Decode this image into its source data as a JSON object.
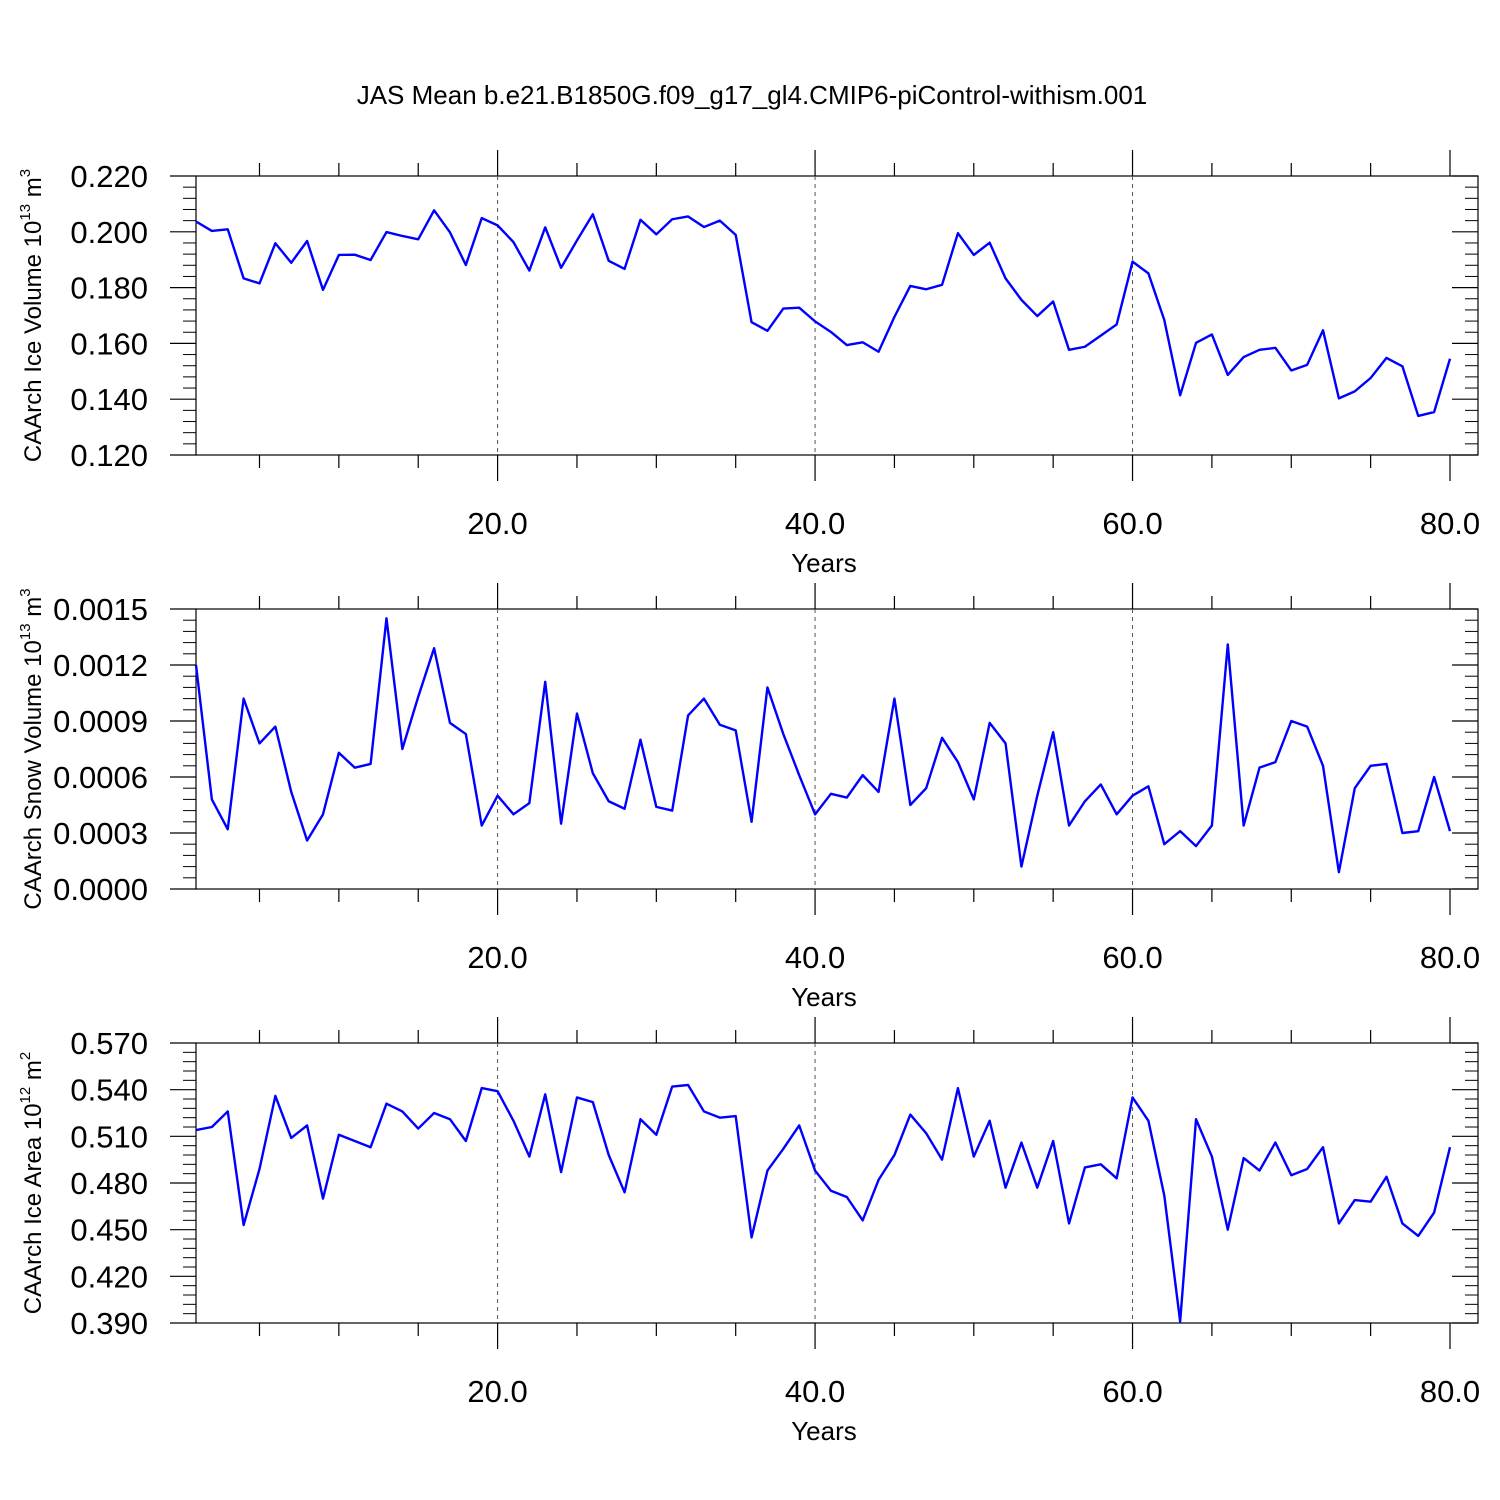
{
  "title": "JAS Mean b.e21.B1850G.f09_g17_gl4.CMIP6-piControl-withism.001",
  "colors": {
    "series": "#0000ff",
    "axis": "#000000",
    "grid": "#555555"
  },
  "chart_data": [
    {
      "type": "line",
      "name": "ice-volume",
      "ylabel": {
        "text": "CAArch Ice Volume 10",
        "exp": "13",
        "unit": " m",
        "unit_exp": "3"
      },
      "xlabel": "Years",
      "xlim": [
        1,
        80
      ],
      "ylim": [
        0.12,
        0.22
      ],
      "xticks": [
        20,
        40,
        60,
        80
      ],
      "xtick_labels": [
        "20.0",
        "40.0",
        "60.0",
        "80.0"
      ],
      "yticks": [
        0.12,
        0.14,
        0.16,
        0.18,
        0.2,
        0.22
      ],
      "ytick_labels": [
        "0.120",
        "0.140",
        "0.160",
        "0.180",
        "0.200",
        "0.220"
      ],
      "grid": "dashed vertical at major x ticks",
      "x_start": 1,
      "values": [
        0.2037,
        0.2003,
        0.2009,
        0.1833,
        0.1815,
        0.1959,
        0.1889,
        0.1967,
        0.1792,
        0.1917,
        0.1918,
        0.1899,
        0.1999,
        0.1985,
        0.1973,
        0.2077,
        0.1998,
        0.1881,
        0.2049,
        0.2023,
        0.1963,
        0.1861,
        0.2016,
        0.1871,
        0.1969,
        0.2063,
        0.1896,
        0.1867,
        0.2043,
        0.1991,
        0.2045,
        0.2055,
        0.2017,
        0.204,
        0.1989,
        0.1676,
        0.1645,
        0.1725,
        0.1728,
        0.1679,
        0.1641,
        0.1594,
        0.1604,
        0.157,
        0.1695,
        0.1806,
        0.1794,
        0.181,
        0.1995,
        0.1917,
        0.1961,
        0.1833,
        0.1756,
        0.1698,
        0.175,
        0.1577,
        0.1588,
        0.1628,
        0.1668,
        0.1893,
        0.1851,
        0.1684,
        0.1414,
        0.1602,
        0.1632,
        0.1487,
        0.1551,
        0.1577,
        0.1584,
        0.1503,
        0.1523,
        0.1647,
        0.1403,
        0.1428,
        0.1476,
        0.1548,
        0.1518,
        0.134,
        0.1354,
        0.1545
      ]
    },
    {
      "type": "line",
      "name": "snow-volume",
      "ylabel": {
        "text": "CAArch Snow Volume 10",
        "exp": "13",
        "unit": " m",
        "unit_exp": "3"
      },
      "xlabel": "Years",
      "xlim": [
        1,
        80
      ],
      "ylim": [
        0.0,
        0.0015
      ],
      "xticks": [
        20,
        40,
        60,
        80
      ],
      "xtick_labels": [
        "20.0",
        "40.0",
        "60.0",
        "80.0"
      ],
      "yticks": [
        0.0,
        0.0003,
        0.0006,
        0.0009,
        0.0012,
        0.0015
      ],
      "ytick_labels": [
        "0.0000",
        "0.0003",
        "0.0006",
        "0.0009",
        "0.0012",
        "0.0015"
      ],
      "grid": "dashed vertical at major x ticks",
      "x_start": 1,
      "values": [
        0.0012,
        0.00048,
        0.00032,
        0.00102,
        0.00078,
        0.00087,
        0.00052,
        0.00026,
        0.0004,
        0.00073,
        0.00065,
        0.00067,
        0.00145,
        0.00075,
        0.00103,
        0.00129,
        0.00089,
        0.00083,
        0.00034,
        0.0005,
        0.0004,
        0.00046,
        0.00111,
        0.00035,
        0.00094,
        0.00062,
        0.00047,
        0.00043,
        0.0008,
        0.00044,
        0.00042,
        0.00093,
        0.00102,
        0.00088,
        0.00085,
        0.00036,
        0.00108,
        0.00083,
        0.00061,
        0.0004,
        0.00051,
        0.00049,
        0.00061,
        0.00052,
        0.00102,
        0.00045,
        0.00054,
        0.00081,
        0.00068,
        0.00048,
        0.00089,
        0.00078,
        0.00012,
        0.0005,
        0.00084,
        0.00034,
        0.00047,
        0.00056,
        0.0004,
        0.0005,
        0.00055,
        0.00024,
        0.00031,
        0.00023,
        0.00034,
        0.00131,
        0.00034,
        0.00065,
        0.00068,
        0.0009,
        0.00087,
        0.00066,
        9e-05,
        0.00054,
        0.00066,
        0.00067,
        0.0003,
        0.00031,
        0.0006,
        0.00031
      ]
    },
    {
      "type": "line",
      "name": "ice-area",
      "ylabel": {
        "text": "CAArch Ice Area 10",
        "exp": "12",
        "unit": " m",
        "unit_exp": "2"
      },
      "xlabel": "Years",
      "xlim": [
        1,
        80
      ],
      "ylim": [
        0.39,
        0.57
      ],
      "xticks": [
        20,
        40,
        60,
        80
      ],
      "xtick_labels": [
        "20.0",
        "40.0",
        "60.0",
        "80.0"
      ],
      "yticks": [
        0.39,
        0.42,
        0.45,
        0.48,
        0.51,
        0.54,
        0.57
      ],
      "ytick_labels": [
        "0.390",
        "0.420",
        "0.450",
        "0.480",
        "0.510",
        "0.540",
        "0.570"
      ],
      "grid": "dashed vertical at major x ticks",
      "x_start": 1,
      "values": [
        0.514,
        0.516,
        0.526,
        0.453,
        0.489,
        0.536,
        0.509,
        0.517,
        0.47,
        0.511,
        0.507,
        0.503,
        0.531,
        0.526,
        0.515,
        0.525,
        0.521,
        0.507,
        0.541,
        0.539,
        0.52,
        0.497,
        0.537,
        0.487,
        0.535,
        0.532,
        0.498,
        0.474,
        0.521,
        0.511,
        0.542,
        0.543,
        0.526,
        0.522,
        0.523,
        0.445,
        0.488,
        0.502,
        0.517,
        0.488,
        0.475,
        0.471,
        0.456,
        0.482,
        0.498,
        0.524,
        0.512,
        0.495,
        0.541,
        0.497,
        0.52,
        0.477,
        0.506,
        0.477,
        0.507,
        0.454,
        0.49,
        0.492,
        0.483,
        0.535,
        0.52,
        0.472,
        0.391,
        0.521,
        0.497,
        0.45,
        0.496,
        0.488,
        0.506,
        0.485,
        0.489,
        0.503,
        0.454,
        0.469,
        0.468,
        0.484,
        0.454,
        0.446,
        0.461,
        0.503
      ]
    }
  ]
}
